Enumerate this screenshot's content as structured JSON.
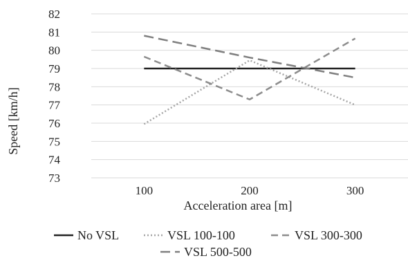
{
  "chart_data": {
    "type": "line",
    "categories": [
      "100",
      "200",
      "300"
    ],
    "xlabel": "Acceleration area [m]",
    "ylabel": "Speed [km/h]",
    "ylim": [
      73,
      82
    ],
    "yticks": [
      "73",
      "74",
      "75",
      "76",
      "77",
      "78",
      "79",
      "80",
      "81",
      "82"
    ],
    "grid": "horizontal",
    "legend_position": "bottom",
    "series": [
      {
        "name": "No VSL",
        "values": [
          79.0,
          79.0,
          79.0
        ],
        "color": "#222222",
        "style": "solid"
      },
      {
        "name": "VSL 100-100",
        "values": [
          75.95,
          79.45,
          77.0
        ],
        "color": "#a6a6a6",
        "style": "dotted"
      },
      {
        "name": "VSL 300-300",
        "values": [
          79.65,
          77.3,
          80.65
        ],
        "color": "#8c8c8c",
        "style": "dashed"
      },
      {
        "name": "VSL 500-500",
        "values": [
          80.8,
          79.6,
          78.5
        ],
        "color": "#7f7f7f",
        "style": "longdash"
      }
    ]
  }
}
